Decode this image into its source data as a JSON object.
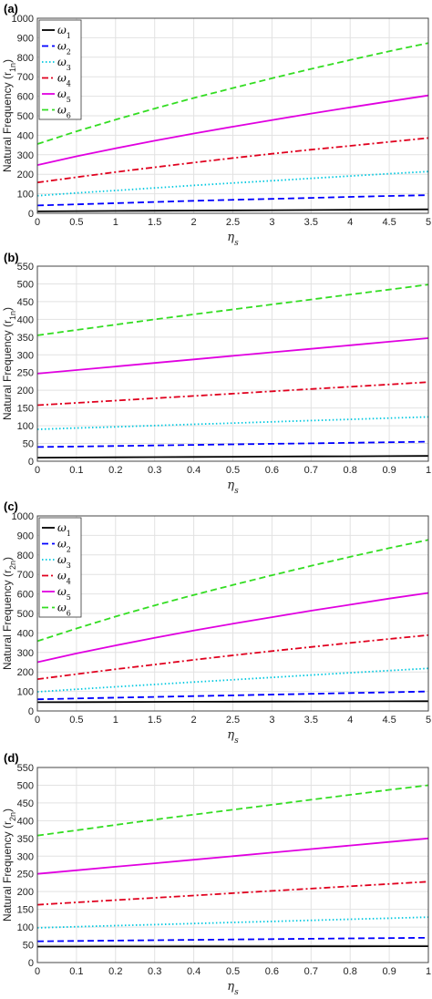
{
  "chart_data": [
    {
      "panel_label": "(a)",
      "type": "line",
      "ylabel": "Natural Frequency (r",
      "ylabel_sub": "1n",
      "ylabel_end": ")",
      "xlabel_main": "η",
      "xlabel_sub": "s",
      "xlim": [
        0,
        5
      ],
      "ylim": [
        0,
        1000
      ],
      "xticks": [
        "0",
        "0.5",
        "1",
        "1.5",
        "2",
        "2.5",
        "3",
        "3.5",
        "4",
        "4.5",
        "5"
      ],
      "yticks": [
        "0",
        "100",
        "200",
        "300",
        "400",
        "500",
        "600",
        "700",
        "800",
        "900",
        "1000"
      ],
      "legend": true,
      "legend_position": "top-left",
      "x": [
        0,
        0.5,
        1,
        1.5,
        2,
        2.5,
        3,
        3.5,
        4,
        4.5,
        5
      ],
      "series": [
        {
          "name": "ω",
          "sub": "1",
          "color": "#000000",
          "dash": "solid",
          "values": [
            10,
            11,
            12,
            13,
            14,
            15,
            16,
            17,
            18,
            19,
            20
          ]
        },
        {
          "name": "ω",
          "sub": "2",
          "color": "#0000ff",
          "dash": "dashed",
          "values": [
            40,
            46,
            52,
            58,
            64,
            69,
            74,
            79,
            84,
            89,
            93
          ]
        },
        {
          "name": "ω",
          "sub": "3",
          "color": "#00c8e0",
          "dash": "dotted",
          "values": [
            90,
            104,
            117,
            130,
            143,
            155,
            167,
            179,
            191,
            203,
            214
          ]
        },
        {
          "name": "ω",
          "sub": "4",
          "color": "#e0001e",
          "dash": "dashdot",
          "values": [
            158,
            185,
            211,
            236,
            260,
            283,
            305,
            326,
            346,
            366,
            386
          ]
        },
        {
          "name": "ω",
          "sub": "5",
          "color": "#e000e0",
          "dash": "solid",
          "values": [
            247,
            292,
            333,
            372,
            409,
            444,
            478,
            511,
            543,
            574,
            604
          ]
        },
        {
          "name": "ω",
          "sub": "6",
          "color": "#33dd22",
          "dash": "dashed",
          "values": [
            355,
            420,
            480,
            537,
            591,
            642,
            692,
            740,
            786,
            831,
            873
          ]
        }
      ]
    },
    {
      "panel_label": "(b)",
      "type": "line",
      "ylabel": "Natural Frequency (r",
      "ylabel_sub": "1n",
      "ylabel_end": ")",
      "xlabel_main": "η",
      "xlabel_sub": "s",
      "xlim": [
        0,
        1
      ],
      "ylim": [
        0,
        550
      ],
      "xticks": [
        "0",
        "0.1",
        "0.2",
        "0.3",
        "0.4",
        "0.5",
        "0.6",
        "0.7",
        "0.8",
        "0.9",
        "1"
      ],
      "yticks": [
        "0",
        "50",
        "100",
        "150",
        "200",
        "250",
        "300",
        "350",
        "400",
        "450",
        "500",
        "550"
      ],
      "legend": false,
      "x": [
        0,
        0.1,
        0.2,
        0.3,
        0.4,
        0.5,
        0.6,
        0.7,
        0.8,
        0.9,
        1
      ],
      "series": [
        {
          "name": "ω",
          "sub": "1",
          "color": "#000000",
          "dash": "solid",
          "values": [
            10,
            10.5,
            11,
            11.5,
            12,
            12.5,
            13,
            13.5,
            14,
            14.5,
            15
          ]
        },
        {
          "name": "ω",
          "sub": "2",
          "color": "#0000ff",
          "dash": "dashed",
          "values": [
            40,
            41.5,
            43,
            44.5,
            46,
            47.5,
            49,
            50.5,
            52,
            53.5,
            55
          ]
        },
        {
          "name": "ω",
          "sub": "3",
          "color": "#00c8e0",
          "dash": "dotted",
          "values": [
            90,
            93.5,
            97,
            100.5,
            104,
            107.5,
            111,
            114.5,
            118,
            121.5,
            125
          ]
        },
        {
          "name": "ω",
          "sub": "4",
          "color": "#e0001e",
          "dash": "dashdot",
          "values": [
            158,
            164.5,
            171,
            177.5,
            184,
            190.5,
            197,
            203.5,
            210,
            216.5,
            223
          ]
        },
        {
          "name": "ω",
          "sub": "5",
          "color": "#e000e0",
          "dash": "solid",
          "values": [
            247,
            257,
            267,
            277,
            287,
            297,
            307,
            317,
            327,
            337,
            347
          ]
        },
        {
          "name": "ω",
          "sub": "6",
          "color": "#33dd22",
          "dash": "dashed",
          "values": [
            355,
            370,
            385,
            400,
            414,
            428,
            442,
            456,
            470,
            484,
            498
          ]
        }
      ]
    },
    {
      "panel_label": "(c)",
      "type": "line",
      "ylabel": "Natural Frequency (r",
      "ylabel_sub": "2n",
      "ylabel_end": ")",
      "xlabel_main": "η",
      "xlabel_sub": "s",
      "xlim": [
        0,
        5
      ],
      "ylim": [
        0,
        1000
      ],
      "xticks": [
        "0",
        "0.5",
        "1",
        "1.5",
        "2",
        "2.5",
        "3",
        "3.5",
        "4",
        "4.5",
        "5"
      ],
      "yticks": [
        "0",
        "100",
        "200",
        "300",
        "400",
        "500",
        "600",
        "700",
        "800",
        "900",
        "1000"
      ],
      "legend": true,
      "legend_position": "top-left",
      "x": [
        0,
        0.5,
        1,
        1.5,
        2,
        2.5,
        3,
        3.5,
        4,
        4.5,
        5
      ],
      "series": [
        {
          "name": "ω",
          "sub": "1",
          "color": "#000000",
          "dash": "solid",
          "values": [
            45,
            45.5,
            46,
            46.5,
            47,
            47.5,
            48,
            48.5,
            49,
            49.5,
            50
          ]
        },
        {
          "name": "ω",
          "sub": "2",
          "color": "#0000ff",
          "dash": "dashed",
          "values": [
            60,
            64,
            68,
            72,
            76,
            80,
            84,
            88,
            92,
            96,
            100
          ]
        },
        {
          "name": "ω",
          "sub": "3",
          "color": "#00c8e0",
          "dash": "dotted",
          "values": [
            98,
            111,
            124,
            136,
            148,
            160,
            172,
            184,
            196,
            207,
            218
          ]
        },
        {
          "name": "ω",
          "sub": "4",
          "color": "#e0001e",
          "dash": "dashdot",
          "values": [
            163,
            189,
            214,
            238,
            262,
            285,
            307,
            328,
            349,
            369,
            389
          ]
        },
        {
          "name": "ω",
          "sub": "5",
          "color": "#e000e0",
          "dash": "solid",
          "values": [
            250,
            295,
            336,
            375,
            412,
            447,
            481,
            514,
            545,
            576,
            605
          ]
        },
        {
          "name": "ω",
          "sub": "6",
          "color": "#33dd22",
          "dash": "dashed",
          "values": [
            358,
            423,
            484,
            541,
            595,
            646,
            696,
            744,
            790,
            835,
            877
          ]
        }
      ]
    },
    {
      "panel_label": "(d)",
      "type": "line",
      "ylabel": "Natural Frequency (r",
      "ylabel_sub": "2n",
      "ylabel_end": ")",
      "xlabel_main": "η",
      "xlabel_sub": "s",
      "xlim": [
        0,
        1
      ],
      "ylim": [
        0,
        550
      ],
      "xticks": [
        "0",
        "0.1",
        "0.2",
        "0.3",
        "0.4",
        "0.5",
        "0.6",
        "0.7",
        "0.8",
        "0.9",
        "1"
      ],
      "yticks": [
        "0",
        "50",
        "100",
        "150",
        "200",
        "250",
        "300",
        "350",
        "400",
        "450",
        "500",
        "550"
      ],
      "legend": false,
      "x": [
        0,
        0.1,
        0.2,
        0.3,
        0.4,
        0.5,
        0.6,
        0.7,
        0.8,
        0.9,
        1
      ],
      "series": [
        {
          "name": "ω",
          "sub": "1",
          "color": "#000000",
          "dash": "solid",
          "values": [
            45,
            45.1,
            45.2,
            45.3,
            45.4,
            45.5,
            45.6,
            45.7,
            45.8,
            45.9,
            46
          ]
        },
        {
          "name": "ω",
          "sub": "2",
          "color": "#0000ff",
          "dash": "dashed",
          "values": [
            60,
            61,
            62,
            63,
            64,
            65,
            66,
            67,
            68,
            69,
            70
          ]
        },
        {
          "name": "ω",
          "sub": "3",
          "color": "#00c8e0",
          "dash": "dotted",
          "values": [
            98,
            101,
            104,
            107,
            110,
            113,
            116,
            119,
            122,
            125,
            128
          ]
        },
        {
          "name": "ω",
          "sub": "4",
          "color": "#e0001e",
          "dash": "dashdot",
          "values": [
            163,
            169.5,
            176,
            182.5,
            189,
            195.5,
            202,
            208.5,
            215,
            221.5,
            228
          ]
        },
        {
          "name": "ω",
          "sub": "5",
          "color": "#e000e0",
          "dash": "solid",
          "values": [
            250,
            260,
            270,
            280,
            290,
            300,
            310,
            320,
            330,
            340,
            350
          ]
        },
        {
          "name": "ω",
          "sub": "6",
          "color": "#33dd22",
          "dash": "dashed",
          "values": [
            358,
            373,
            388,
            403,
            417,
            431,
            445,
            459,
            473,
            487,
            500
          ]
        }
      ]
    }
  ]
}
